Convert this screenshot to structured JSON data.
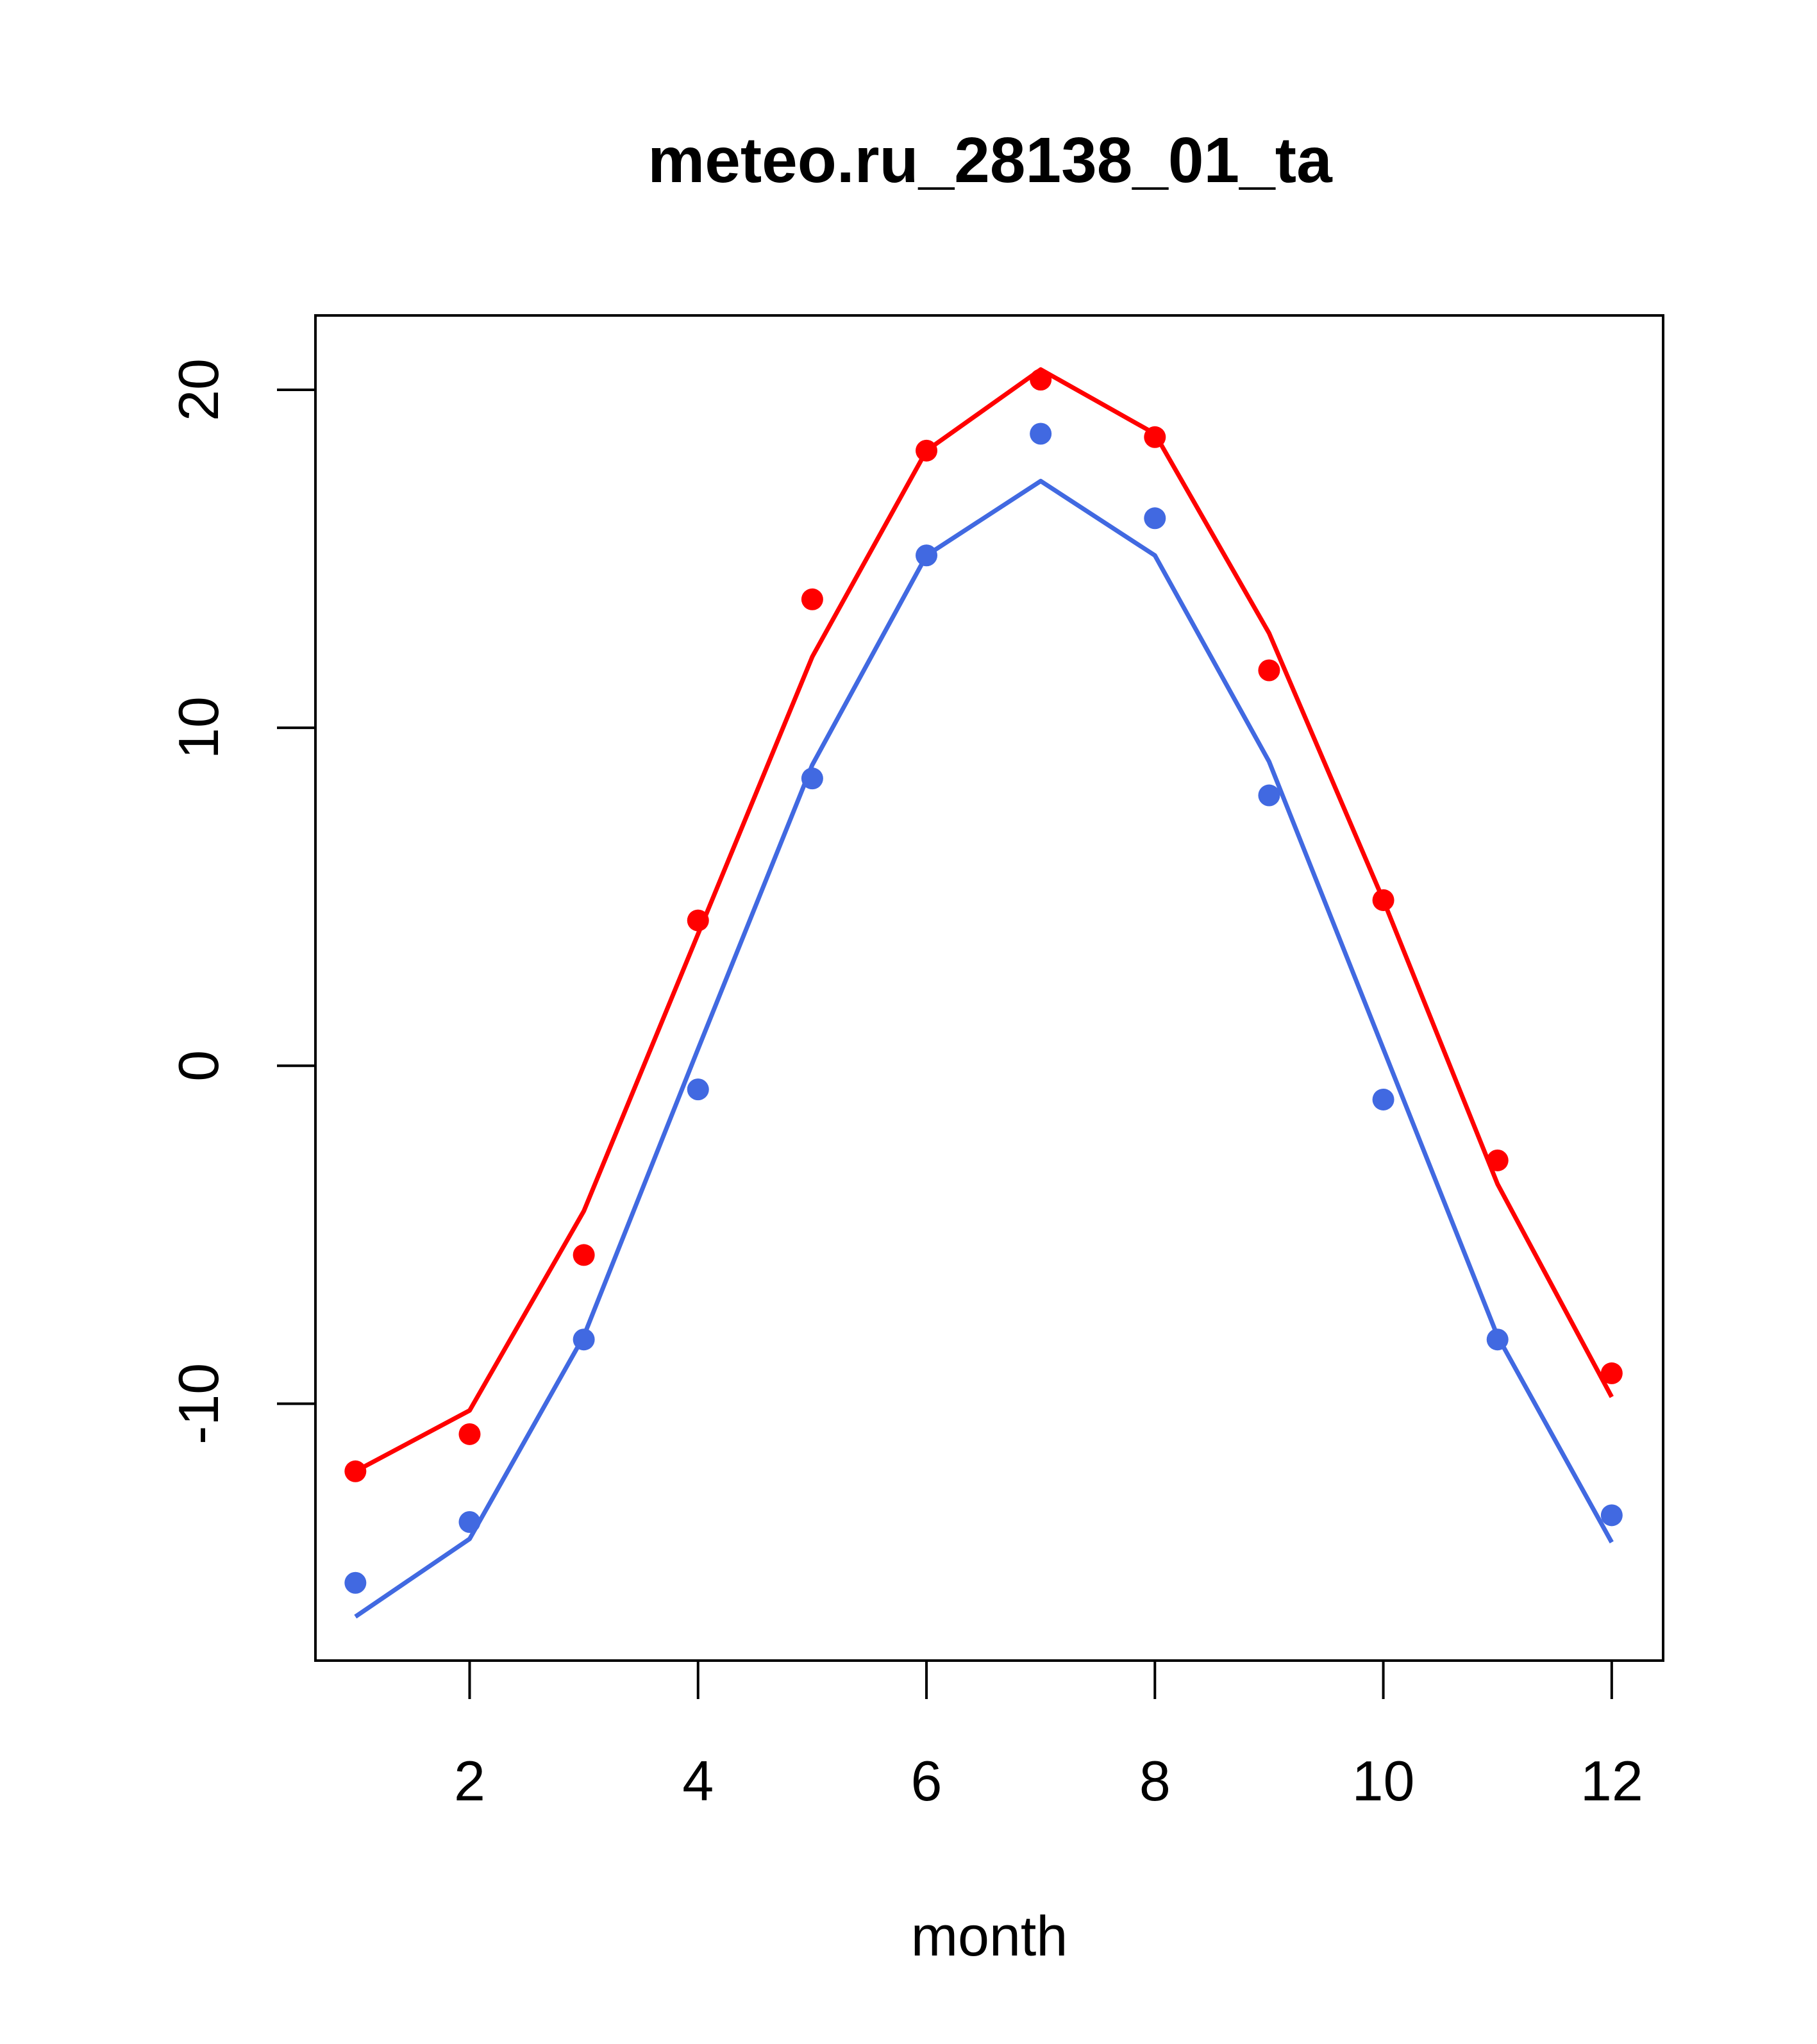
{
  "chart_data": {
    "type": "line",
    "title": "meteo.ru_28138_01_ta",
    "xlabel": "month",
    "ylabel": "",
    "xlim": [
      0.65,
      12.45
    ],
    "ylim": [
      -17.6,
      22.2
    ],
    "xticks": [
      2,
      4,
      6,
      8,
      10,
      12
    ],
    "yticks": [
      -10,
      0,
      10,
      20
    ],
    "grid": false,
    "x": [
      1,
      2,
      3,
      4,
      5,
      6,
      7,
      8,
      9,
      10,
      11,
      12
    ],
    "series": [
      {
        "color": "#FF0000",
        "line": [
          -12.0,
          -10.2,
          -4.3,
          3.9,
          12.1,
          18.2,
          20.6,
          18.7,
          12.8,
          4.9,
          -3.5,
          -9.8
        ],
        "points": [
          -12.0,
          -10.9,
          -5.6,
          4.3,
          13.8,
          18.2,
          20.3,
          18.6,
          11.7,
          4.9,
          -2.8,
          -9.1
        ]
      },
      {
        "color": "#4169E1",
        "line": [
          -16.3,
          -14.0,
          -8.0,
          0.5,
          8.9,
          15.1,
          17.3,
          15.1,
          9.0,
          0.5,
          -8.0,
          -14.1
        ],
        "points": [
          -15.3,
          -13.5,
          -8.1,
          -0.7,
          8.5,
          15.1,
          18.7,
          16.2,
          8.0,
          -1.0,
          -8.1,
          -13.3
        ]
      }
    ]
  }
}
